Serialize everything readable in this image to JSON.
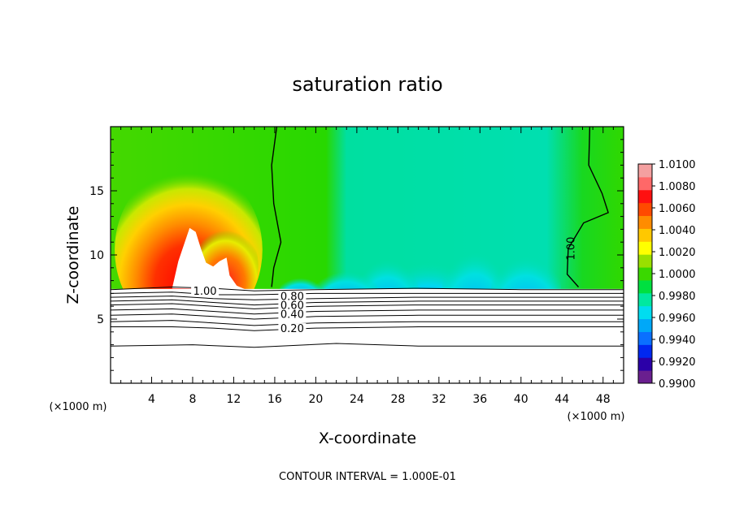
{
  "chart_data": {
    "type": "heatmap",
    "title": "saturation ratio",
    "xlabel": "X-coordinate",
    "ylabel": "Z-coordinate",
    "x_unit_left": "(×1000 m)",
    "x_unit_right": "(×1000 m)",
    "footer": "CONTOUR INTERVAL = 1.000E-01",
    "xlim": [
      0,
      50
    ],
    "ylim": [
      0,
      20
    ],
    "x_ticks": [
      {
        "value": 4,
        "label": "4"
      },
      {
        "value": 8,
        "label": "8"
      },
      {
        "value": 12,
        "label": "12"
      },
      {
        "value": 16,
        "label": "16"
      },
      {
        "value": 20,
        "label": "20"
      },
      {
        "value": 24,
        "label": "24"
      },
      {
        "value": 28,
        "label": "28"
      },
      {
        "value": 32,
        "label": "32"
      },
      {
        "value": 36,
        "label": "36"
      },
      {
        "value": 40,
        "label": "40"
      },
      {
        "value": 44,
        "label": "44"
      },
      {
        "value": 48,
        "label": "48"
      }
    ],
    "y_ticks": [
      {
        "value": 5,
        "label": "5"
      },
      {
        "value": 10,
        "label": "10"
      },
      {
        "value": 15,
        "label": "15"
      }
    ],
    "colorbar": {
      "min": 0.99,
      "max": 1.01,
      "labels": [
        "1.0100",
        "1.0080",
        "1.0060",
        "1.0040",
        "1.0020",
        "1.0000",
        "0.9980",
        "0.9960",
        "0.9940",
        "0.9920",
        "0.9900"
      ],
      "colors": [
        "#6a1f8f",
        "#2b00a8",
        "#0028f0",
        "#0a70ff",
        "#00a8f8",
        "#00ddf0",
        "#00e8a0",
        "#00e040",
        "#3ad800",
        "#9ae000",
        "#ffff00",
        "#ffc800",
        "#ff8c00",
        "#ff4a00",
        "#ff1010",
        "#ff6868",
        "#f4a0a0"
      ]
    },
    "contour_labels": [
      {
        "text": "1.00",
        "x": 9.2,
        "z": 7.2
      },
      {
        "text": "0.80",
        "x": 17.7,
        "z": 6.8
      },
      {
        "text": "0.60",
        "x": 17.7,
        "z": 6.1
      },
      {
        "text": "0.40",
        "x": 17.7,
        "z": 5.4
      },
      {
        "text": "0.20",
        "x": 17.7,
        "z": 4.3
      },
      {
        "text": "1.00",
        "x": 44.8,
        "z": 10.5
      }
    ],
    "contour_lines": [
      {
        "level": 1.0,
        "points": [
          [
            0,
            7.3
          ],
          [
            6,
            7.5
          ],
          [
            10,
            7.4
          ],
          [
            14,
            7.2
          ],
          [
            20,
            7.3
          ],
          [
            30,
            7.4
          ],
          [
            40,
            7.3
          ],
          [
            50,
            7.3
          ]
        ]
      },
      {
        "level": 0.9,
        "points": [
          [
            0,
            7.0
          ],
          [
            6,
            7.1
          ],
          [
            10,
            6.9
          ],
          [
            14,
            6.9
          ],
          [
            20,
            7.0
          ],
          [
            30,
            7.0
          ],
          [
            40,
            7.0
          ],
          [
            50,
            7.0
          ]
        ]
      },
      {
        "level": 0.8,
        "points": [
          [
            0,
            6.7
          ],
          [
            6,
            6.8
          ],
          [
            10,
            6.6
          ],
          [
            14,
            6.5
          ],
          [
            20,
            6.6
          ],
          [
            30,
            6.7
          ],
          [
            40,
            6.7
          ],
          [
            50,
            6.7
          ]
        ]
      },
      {
        "level": 0.7,
        "points": [
          [
            0,
            6.4
          ],
          [
            6,
            6.5
          ],
          [
            10,
            6.3
          ],
          [
            14,
            6.1
          ],
          [
            20,
            6.3
          ],
          [
            30,
            6.4
          ],
          [
            40,
            6.4
          ],
          [
            50,
            6.4
          ]
        ]
      },
      {
        "level": 0.6,
        "points": [
          [
            0,
            6.1
          ],
          [
            6,
            6.2
          ],
          [
            10,
            6.0
          ],
          [
            14,
            5.8
          ],
          [
            20,
            6.0
          ],
          [
            30,
            6.1
          ],
          [
            40,
            6.1
          ],
          [
            50,
            6.1
          ]
        ]
      },
      {
        "level": 0.5,
        "points": [
          [
            0,
            5.7
          ],
          [
            6,
            5.8
          ],
          [
            10,
            5.6
          ],
          [
            14,
            5.4
          ],
          [
            20,
            5.6
          ],
          [
            30,
            5.7
          ],
          [
            40,
            5.7
          ],
          [
            50,
            5.7
          ]
        ]
      },
      {
        "level": 0.4,
        "points": [
          [
            0,
            5.3
          ],
          [
            6,
            5.4
          ],
          [
            10,
            5.2
          ],
          [
            14,
            5.0
          ],
          [
            20,
            5.2
          ],
          [
            30,
            5.3
          ],
          [
            40,
            5.3
          ],
          [
            50,
            5.3
          ]
        ]
      },
      {
        "level": 0.3,
        "points": [
          [
            0,
            4.8
          ],
          [
            6,
            4.9
          ],
          [
            10,
            4.7
          ],
          [
            14,
            4.5
          ],
          [
            20,
            4.7
          ],
          [
            30,
            4.8
          ],
          [
            40,
            4.8
          ],
          [
            50,
            4.8
          ]
        ]
      },
      {
        "level": 0.2,
        "points": [
          [
            0,
            4.4
          ],
          [
            6,
            4.4
          ],
          [
            10,
            4.3
          ],
          [
            14,
            4.1
          ],
          [
            20,
            4.3
          ],
          [
            30,
            4.4
          ],
          [
            40,
            4.4
          ],
          [
            50,
            4.4
          ]
        ]
      },
      {
        "level": 0.1,
        "points": [
          [
            0,
            2.9
          ],
          [
            8,
            3.0
          ],
          [
            14,
            2.8
          ],
          [
            22,
            3.1
          ],
          [
            30,
            2.9
          ],
          [
            40,
            2.9
          ],
          [
            50,
            2.9
          ]
        ]
      }
    ],
    "unit_contour_left": [
      [
        16.2,
        20
      ],
      [
        15.7,
        17
      ],
      [
        15.9,
        14
      ],
      [
        16.6,
        11
      ],
      [
        15.9,
        9
      ],
      [
        15.7,
        7.5
      ]
    ],
    "unit_contour_right": [
      [
        46.7,
        20
      ],
      [
        46.6,
        17
      ],
      [
        47.9,
        14.8
      ],
      [
        48.5,
        13.3
      ],
      [
        46.1,
        12.5
      ],
      [
        44.6,
        10.5
      ],
      [
        44.5,
        8.5
      ],
      [
        45.6,
        7.5
      ]
    ],
    "cloud_free_region": [
      [
        6.0,
        7.4
      ],
      [
        6.6,
        9.5
      ],
      [
        7.7,
        12.1
      ],
      [
        8.3,
        11.8
      ],
      [
        8.8,
        10.5
      ],
      [
        9.3,
        9.4
      ],
      [
        10.0,
        9.1
      ],
      [
        10.6,
        9.5
      ],
      [
        11.3,
        9.8
      ],
      [
        11.6,
        8.4
      ],
      [
        12.3,
        7.6
      ],
      [
        13.2,
        7.3
      ]
    ]
  }
}
